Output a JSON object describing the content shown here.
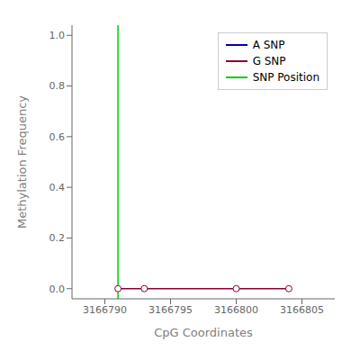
{
  "chart_data": {
    "type": "line",
    "xlabel": "CpG Coordinates",
    "ylabel": "Methylation Frequency",
    "series": [
      {
        "name": "A SNP",
        "color": "#0000aa",
        "x": [],
        "values": []
      },
      {
        "name": "G SNP",
        "color": "#880033",
        "marker": "circle",
        "x": [
          3166791,
          3166793,
          3166800,
          3166804
        ],
        "values": [
          0.0,
          0.0,
          0.0,
          0.0
        ]
      },
      {
        "name": "SNP Position",
        "type": "vline",
        "color": "#00cc00",
        "x": [
          3166791
        ]
      }
    ],
    "xlim": [
      3166787.5,
      3166807.5
    ],
    "ylim": [
      -0.04,
      1.04
    ],
    "xticks": [
      3166790,
      3166795,
      3166800,
      3166805
    ],
    "yticks": [
      {
        "value": 0.0,
        "label": "0.0"
      },
      0.2,
      0.4,
      0.6,
      0.8,
      {
        "value": 1.0,
        "label": "1.0"
      }
    ],
    "legend": "upper right",
    "grid": false
  }
}
